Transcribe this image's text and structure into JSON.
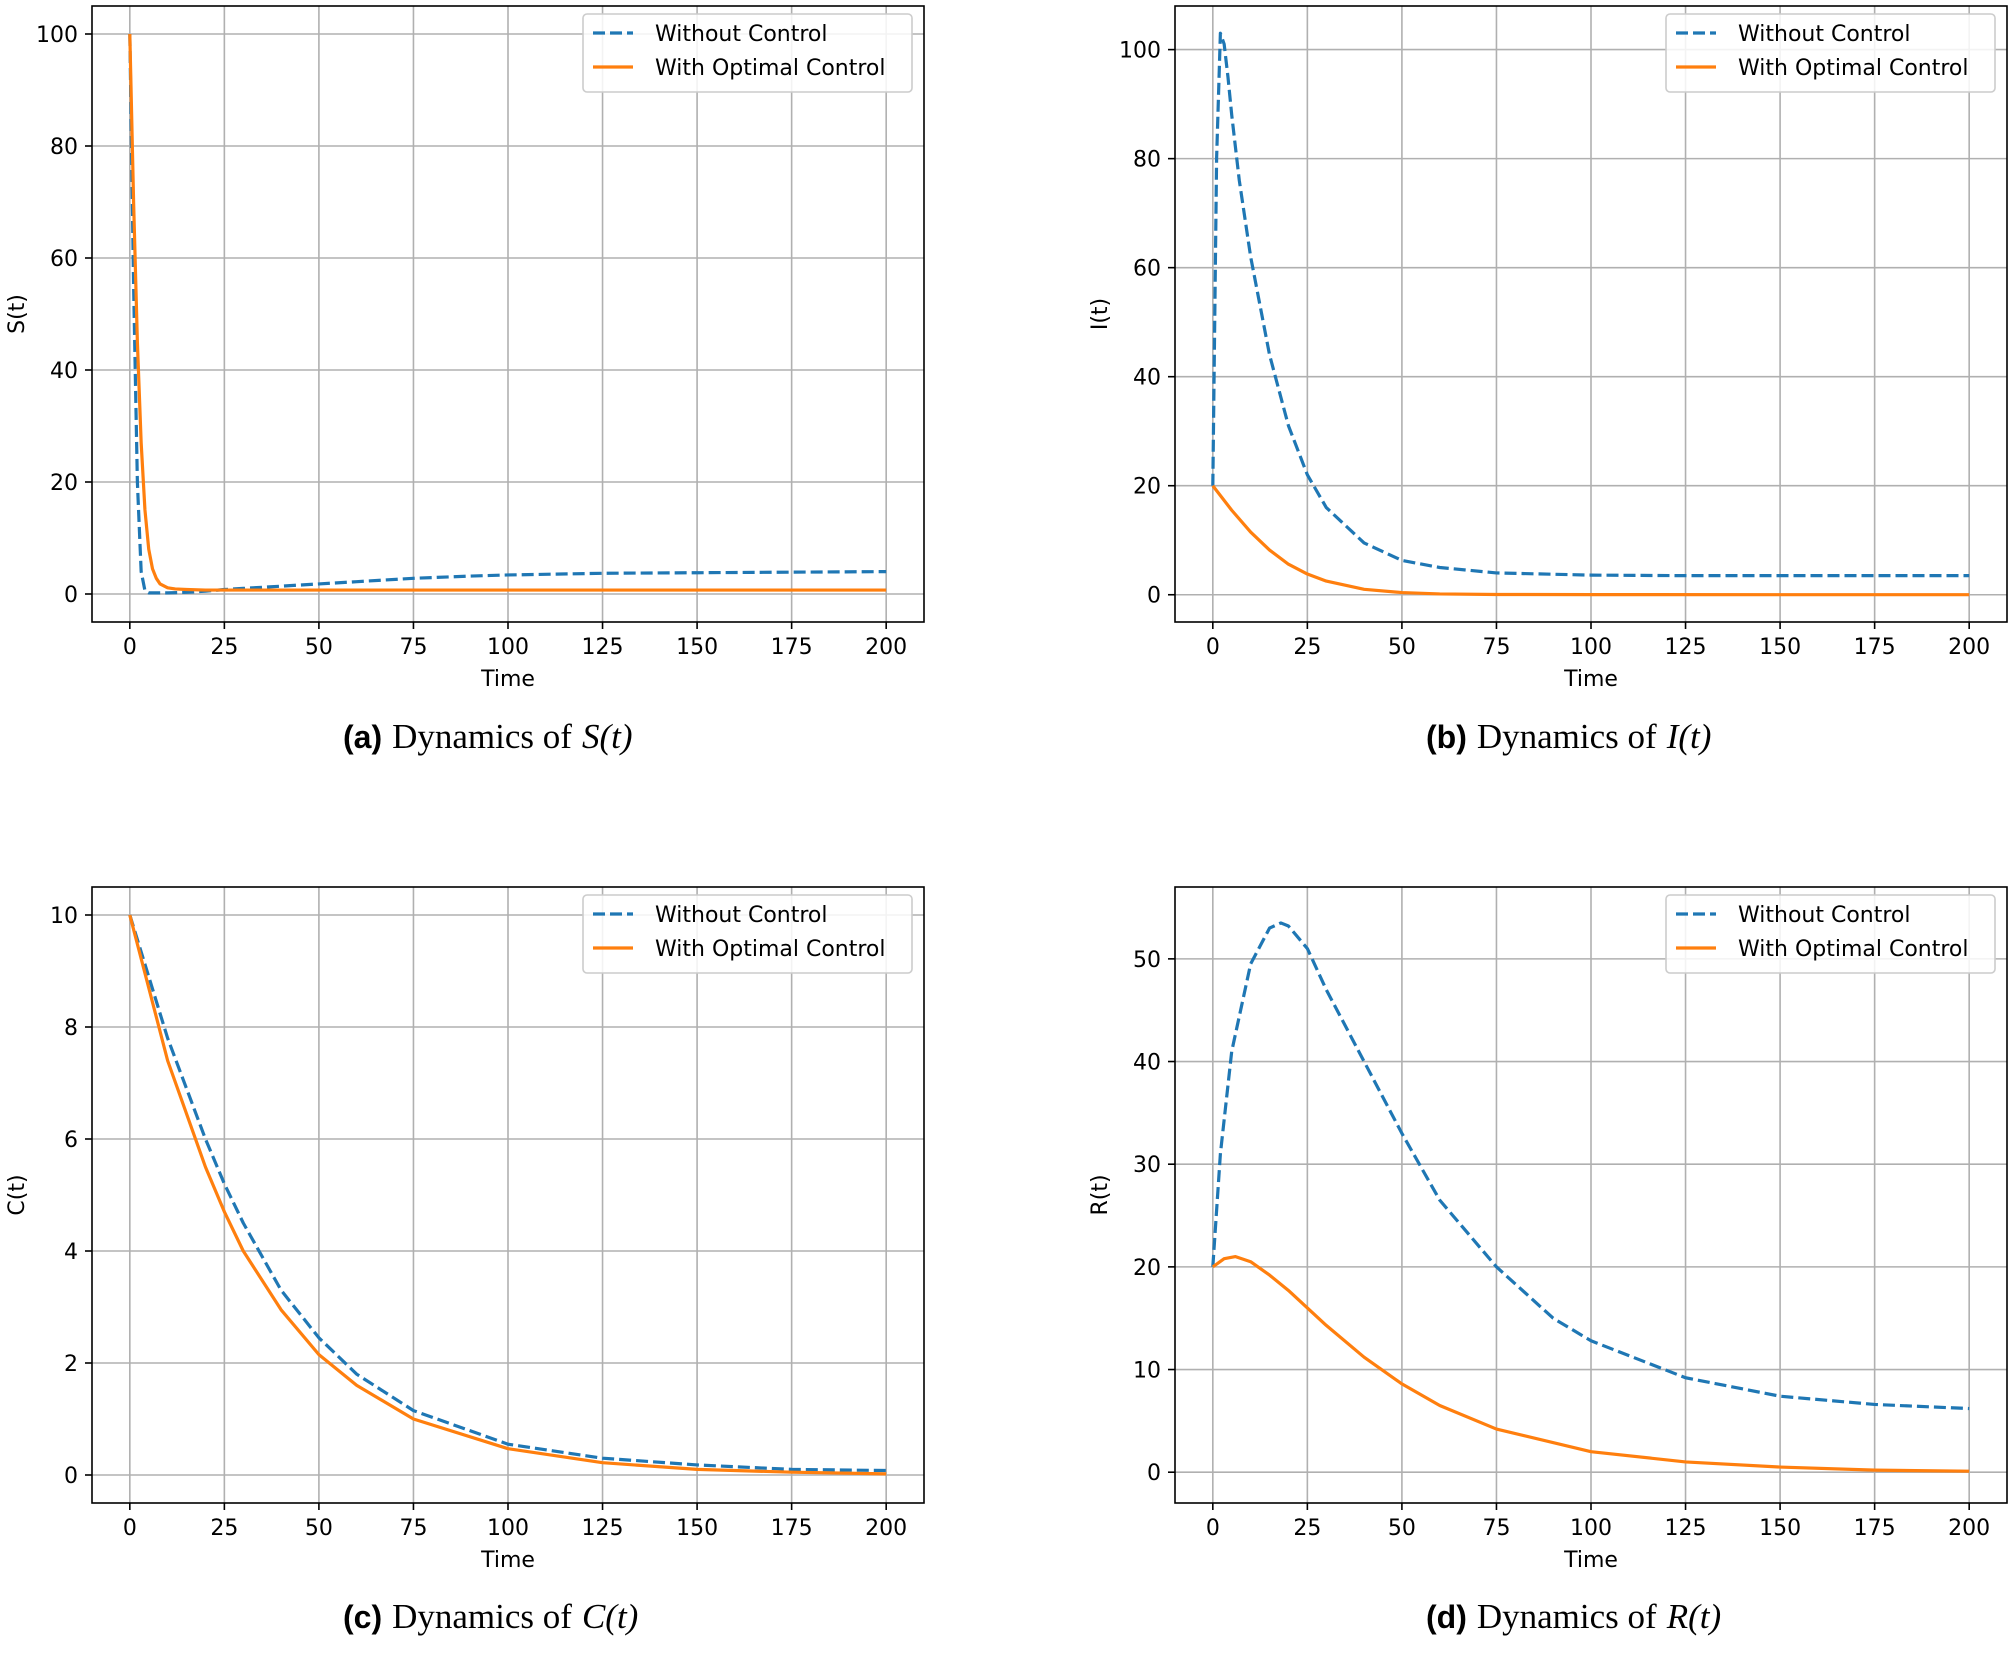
{
  "chart_data": [
    {
      "type": "line",
      "panel_tag": "(a)",
      "caption": "Dynamics of",
      "caption_math": "S(t)",
      "xlabel": "Time",
      "ylabel": "S(t)",
      "xlim": [
        -10,
        210
      ],
      "ylim": [
        -5,
        105
      ],
      "xticks": [
        0,
        25,
        50,
        75,
        100,
        125,
        150,
        175,
        200
      ],
      "yticks": [
        0,
        20,
        40,
        60,
        80,
        100
      ],
      "grid": true,
      "legend_position": "top-right",
      "series": [
        {
          "name": "Without Control",
          "color": "#1f77b4",
          "style": "dashed",
          "x": [
            0,
            1,
            2,
            3,
            4,
            5,
            10,
            15,
            20,
            25,
            30,
            40,
            50,
            60,
            75,
            90,
            100,
            125,
            150,
            175,
            200
          ],
          "y": [
            100,
            55,
            20,
            4,
            0.6,
            0.2,
            0.2,
            0.3,
            0.5,
            0.8,
            1.0,
            1.4,
            1.8,
            2.2,
            2.8,
            3.2,
            3.4,
            3.7,
            3.8,
            3.9,
            4.0
          ]
        },
        {
          "name": "With Optimal Control",
          "color": "#ff7f0e",
          "style": "solid",
          "x": [
            0,
            1,
            2,
            3,
            4,
            5,
            6,
            7,
            8,
            10,
            12,
            15,
            20,
            25,
            50,
            100,
            150,
            200
          ],
          "y": [
            100,
            70,
            45,
            27,
            15,
            8,
            4.5,
            2.8,
            1.8,
            1.1,
            0.9,
            0.8,
            0.7,
            0.7,
            0.7,
            0.7,
            0.7,
            0.7
          ]
        }
      ]
    },
    {
      "type": "line",
      "panel_tag": "(b)",
      "caption": "Dynamics of",
      "caption_math": "I(t)",
      "xlabel": "Time",
      "ylabel": "I(t)",
      "xlim": [
        -10,
        210
      ],
      "ylim": [
        -5,
        108
      ],
      "xticks": [
        0,
        25,
        50,
        75,
        100,
        125,
        150,
        175,
        200
      ],
      "yticks": [
        0,
        20,
        40,
        60,
        80,
        100
      ],
      "grid": true,
      "legend_position": "top-right",
      "series": [
        {
          "name": "Without Control",
          "color": "#1f77b4",
          "style": "dashed",
          "x": [
            0,
            1,
            2,
            3,
            4,
            5,
            7,
            10,
            15,
            20,
            25,
            30,
            40,
            50,
            60,
            75,
            100,
            125,
            150,
            175,
            200
          ],
          "y": [
            20,
            80,
            103,
            101,
            95,
            88,
            76,
            62,
            44,
            31,
            22,
            16,
            9.5,
            6.3,
            5.0,
            4.0,
            3.6,
            3.5,
            3.5,
            3.5,
            3.5
          ]
        },
        {
          "name": "With Optimal Control",
          "color": "#ff7f0e",
          "style": "solid",
          "x": [
            0,
            5,
            10,
            15,
            20,
            25,
            30,
            40,
            50,
            60,
            75,
            100,
            150,
            200
          ],
          "y": [
            20,
            15.5,
            11.5,
            8.2,
            5.6,
            3.8,
            2.5,
            1.0,
            0.4,
            0.15,
            0.05,
            0.02,
            0.01,
            0.01
          ]
        }
      ]
    },
    {
      "type": "line",
      "panel_tag": "(c)",
      "caption": "Dynamics of",
      "caption_math": "C(t)",
      "xlabel": "Time",
      "ylabel": "C(t)",
      "xlim": [
        -10,
        210
      ],
      "ylim": [
        -0.5,
        10.5
      ],
      "xticks": [
        0,
        25,
        50,
        75,
        100,
        125,
        150,
        175,
        200
      ],
      "yticks": [
        0,
        2,
        4,
        6,
        8,
        10
      ],
      "grid": true,
      "legend_position": "top-right",
      "series": [
        {
          "name": "Without Control",
          "color": "#1f77b4",
          "style": "dashed",
          "x": [
            0,
            10,
            20,
            25,
            30,
            40,
            50,
            60,
            75,
            100,
            125,
            150,
            175,
            200
          ],
          "y": [
            10,
            7.8,
            6.0,
            5.2,
            4.5,
            3.3,
            2.45,
            1.8,
            1.15,
            0.55,
            0.3,
            0.18,
            0.1,
            0.08
          ]
        },
        {
          "name": "With Optimal Control",
          "color": "#ff7f0e",
          "style": "solid",
          "x": [
            0,
            10,
            20,
            25,
            30,
            40,
            50,
            60,
            75,
            100,
            125,
            150,
            175,
            200
          ],
          "y": [
            10,
            7.4,
            5.5,
            4.7,
            4.0,
            2.95,
            2.15,
            1.6,
            1.0,
            0.47,
            0.22,
            0.1,
            0.05,
            0.02
          ]
        }
      ]
    },
    {
      "type": "line",
      "panel_tag": "(d)",
      "caption": "Dynamics of",
      "caption_math": "R(t)",
      "xlabel": "Time",
      "ylabel": "R(t)",
      "xlim": [
        -10,
        210
      ],
      "ylim": [
        -3,
        57
      ],
      "xticks": [
        0,
        25,
        50,
        75,
        100,
        125,
        150,
        175,
        200
      ],
      "yticks": [
        0,
        10,
        20,
        30,
        40,
        50
      ],
      "grid": true,
      "legend_position": "top-right",
      "series": [
        {
          "name": "Without Control",
          "color": "#1f77b4",
          "style": "dashed",
          "x": [
            0,
            2,
            5,
            10,
            15,
            18,
            20,
            25,
            30,
            40,
            50,
            60,
            75,
            90,
            100,
            125,
            150,
            175,
            200
          ],
          "y": [
            20,
            31,
            41,
            49.5,
            53,
            53.5,
            53.2,
            51,
            47,
            40,
            33,
            26.5,
            20,
            15,
            12.8,
            9.2,
            7.4,
            6.6,
            6.2
          ]
        },
        {
          "name": "With Optimal Control",
          "color": "#ff7f0e",
          "style": "solid",
          "x": [
            0,
            3,
            6,
            10,
            15,
            20,
            25,
            30,
            40,
            50,
            60,
            75,
            100,
            125,
            150,
            175,
            200
          ],
          "y": [
            20,
            20.8,
            21.0,
            20.5,
            19.2,
            17.7,
            16.0,
            14.3,
            11.2,
            8.6,
            6.5,
            4.2,
            2.0,
            1.0,
            0.5,
            0.2,
            0.1
          ]
        }
      ]
    }
  ]
}
